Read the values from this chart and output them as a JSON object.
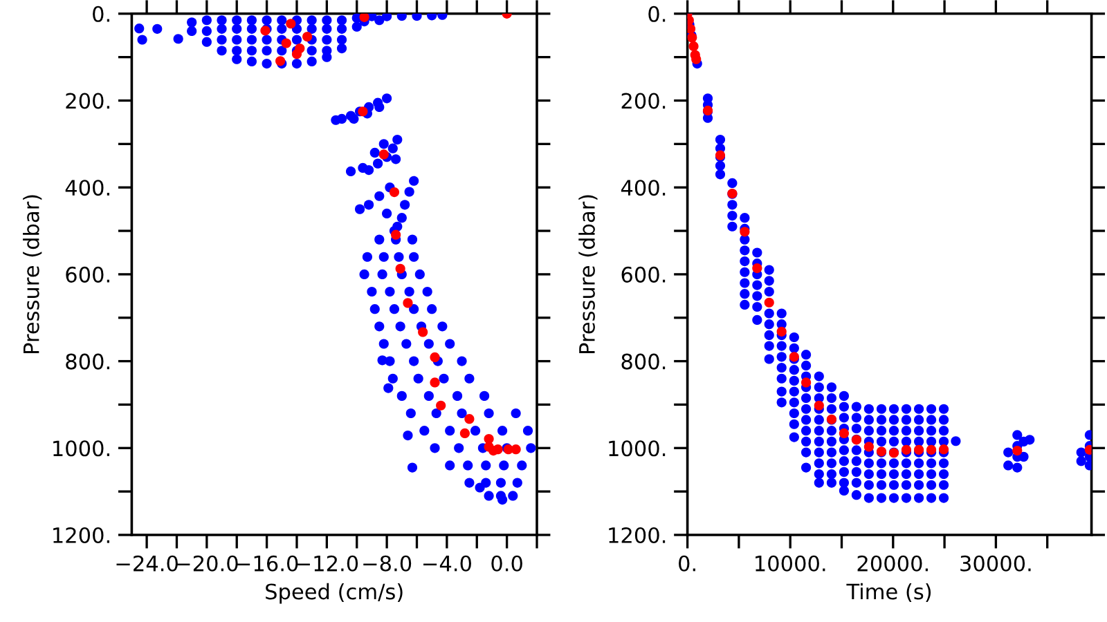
{
  "chart_data": [
    {
      "type": "scatter",
      "xlabel": "Speed (cm/s)",
      "ylabel": "Pressure (dbar)",
      "marker": "circle",
      "xlim": [
        -25,
        2
      ],
      "xticks": [
        {
          "value": -24,
          "label": "−24.0"
        },
        {
          "value": -22,
          "label": null
        },
        {
          "value": -20,
          "label": "−20.0"
        },
        {
          "value": -18,
          "label": null
        },
        {
          "value": -16,
          "label": "−16.0"
        },
        {
          "value": -14,
          "label": null
        },
        {
          "value": -12,
          "label": "−12.0"
        },
        {
          "value": -10,
          "label": null
        },
        {
          "value": -8,
          "label": "−8.0"
        },
        {
          "value": -6,
          "label": null
        },
        {
          "value": -4,
          "label": "−4.0"
        },
        {
          "value": -2,
          "label": null
        },
        {
          "value": 0,
          "label": "0.0"
        },
        {
          "value": 2,
          "label": null
        }
      ],
      "ylim": [
        1200,
        0
      ],
      "yticks": [
        {
          "value": 0,
          "label": "0."
        },
        {
          "value": 100,
          "label": null
        },
        {
          "value": 200,
          "label": "200."
        },
        {
          "value": 300,
          "label": null
        },
        {
          "value": 400,
          "label": "400."
        },
        {
          "value": 500,
          "label": null
        },
        {
          "value": 600,
          "label": "600."
        },
        {
          "value": 700,
          "label": null
        },
        {
          "value": 800,
          "label": "800."
        },
        {
          "value": 900,
          "label": null
        },
        {
          "value": 1000,
          "label": "1000."
        },
        {
          "value": 1100,
          "label": null
        },
        {
          "value": 1200,
          "label": "1200."
        }
      ],
      "series": [
        {
          "color": "#0000ff",
          "x": [
            -24.5,
            -24.3,
            -23.3,
            -21.9,
            -21,
            -21,
            -20,
            -20,
            -20,
            -19,
            -19,
            -19,
            -19,
            -18,
            -18,
            -18,
            -18,
            -18,
            -17,
            -17,
            -17,
            -17,
            -17,
            -16,
            -16,
            -16,
            -16,
            -16,
            -15,
            -15,
            -15,
            -15,
            -15,
            -14,
            -14,
            -14,
            -14,
            -14,
            -13,
            -13,
            -13,
            -13,
            -13,
            -12,
            -12,
            -12,
            -12,
            -12,
            -11,
            -11,
            -11,
            -11,
            -10,
            -10,
            -9,
            -8,
            -7,
            -6,
            -5,
            -4.3,
            -8.5,
            -9.5,
            -8.0,
            -8.6,
            -9.2,
            -9.8,
            -10.4,
            -11.0,
            -11.4,
            -8.5,
            -9.3,
            -10.2,
            -7.3,
            -7.6,
            -8.0,
            -8.6,
            -9.2,
            -8.2,
            -8.8,
            -9.6,
            -7.4,
            -10.4,
            -6.2,
            -6.5,
            -6.8,
            -7.0,
            -7.3,
            -7.8,
            -8.5,
            -9.2,
            -9.8,
            -8.0,
            -7.5,
            -8.5,
            -7.4,
            -6.3,
            -9.3,
            -8.2,
            -7.2,
            -6.2,
            -9.5,
            -8.3,
            -7.0,
            -5.8,
            -9.0,
            -7.8,
            -6.5,
            -5.3,
            -8.8,
            -7.5,
            -6.2,
            -5.0,
            -8.5,
            -7.1,
            -5.7,
            -4.3,
            -8.2,
            -6.7,
            -5.2,
            -3.8,
            -7.8,
            -6.2,
            -4.6,
            -3.0,
            -7.6,
            -5.9,
            -4.2,
            -2.5,
            -7.0,
            -5.2,
            -3.3,
            -1.5,
            -6.4,
            -4.7,
            -3.0,
            -1.2,
            0.6,
            -5.5,
            -3.8,
            -2.1,
            -0.3,
            1.4,
            -4.8,
            -3.2,
            -1.6,
            0,
            1.6,
            -3.8,
            -2.6,
            -1.4,
            -0.2,
            1.0,
            -2.5,
            -1.4,
            -0.4,
            0.7,
            -1.2,
            -0.4,
            0.4,
            -8.3,
            -7.9,
            -6.6,
            -6.3,
            -1.8,
            -0.3
          ],
          "values": [
            34,
            60,
            35,
            58,
            20,
            40,
            15,
            40,
            65,
            15,
            35,
            60,
            85,
            15,
            35,
            60,
            85,
            105,
            15,
            35,
            60,
            85,
            110,
            15,
            35,
            60,
            85,
            115,
            15,
            35,
            60,
            85,
            115,
            15,
            35,
            60,
            85,
            115,
            15,
            35,
            60,
            85,
            110,
            15,
            35,
            60,
            85,
            100,
            15,
            35,
            60,
            80,
            10,
            30,
            6,
            6,
            5,
            5,
            4,
            3,
            15,
            18,
            195,
            205,
            215,
            225,
            235,
            242,
            245,
            215,
            230,
            242,
            290,
            310,
            330,
            345,
            360,
            300,
            320,
            355,
            335,
            363,
            385,
            410,
            440,
            470,
            490,
            400,
            420,
            440,
            450,
            460,
            500,
            520,
            520,
            520,
            560,
            560,
            560,
            560,
            600,
            600,
            600,
            600,
            640,
            640,
            640,
            640,
            680,
            680,
            680,
            680,
            720,
            720,
            720,
            720,
            760,
            760,
            760,
            760,
            800,
            800,
            800,
            800,
            840,
            840,
            840,
            840,
            880,
            880,
            880,
            880,
            920,
            920,
            920,
            920,
            920,
            960,
            960,
            960,
            960,
            960,
            1000,
            1000,
            1000,
            1000,
            1000,
            1040,
            1040,
            1040,
            1040,
            1040,
            1080,
            1080,
            1080,
            1080,
            1110,
            1110,
            1110,
            798,
            862,
            971,
            1045,
            1091,
            1119
          ]
        },
        {
          "color": "#ff0000",
          "x": [
            -16.1,
            -14.4,
            -13.3,
            -14.7,
            -13.8,
            -14.0,
            -15.1,
            -9.5,
            0,
            -9.6,
            -8.2,
            -7.5,
            -7.4,
            -7.1,
            -6.6,
            -5.6,
            -4.8,
            -4.8,
            -4.4,
            -2.5,
            -2.8,
            -1.2,
            -1.2,
            -0.9,
            0.1,
            0.6,
            -0.6
          ],
          "values": [
            39,
            23,
            53,
            68,
            80,
            93,
            109,
            8,
            0,
            225,
            324,
            411,
            509,
            587,
            666,
            733,
            791,
            849,
            902,
            933,
            966,
            979,
            997,
            1006,
            1003,
            1003,
            1003
          ]
        }
      ]
    },
    {
      "type": "scatter",
      "xlabel": "Time (s)",
      "ylabel": "Pressure (dbar)",
      "marker": "circle",
      "xlim": [
        0,
        39300
      ],
      "xticks": [
        {
          "value": 0,
          "label": "0."
        },
        {
          "value": 5000,
          "label": null
        },
        {
          "value": 10000,
          "label": "10000."
        },
        {
          "value": 15000,
          "label": null
        },
        {
          "value": 20000,
          "label": "20000."
        },
        {
          "value": 25000,
          "label": null
        },
        {
          "value": 30000,
          "label": "30000."
        },
        {
          "value": 35000,
          "label": null
        }
      ],
      "ylim": [
        1200,
        0
      ],
      "yticks": [
        {
          "value": 0,
          "label": "0."
        },
        {
          "value": 100,
          "label": null
        },
        {
          "value": 200,
          "label": "200."
        },
        {
          "value": 300,
          "label": null
        },
        {
          "value": 400,
          "label": "400."
        },
        {
          "value": 500,
          "label": null
        },
        {
          "value": 600,
          "label": "600."
        },
        {
          "value": 700,
          "label": null
        },
        {
          "value": 800,
          "label": "800."
        },
        {
          "value": 900,
          "label": null
        },
        {
          "value": 1000,
          "label": "1000."
        },
        {
          "value": 1100,
          "label": null
        },
        {
          "value": 1200,
          "label": "1200."
        }
      ],
      "series": [
        {
          "color": "#0000ff",
          "x": [
            0,
            200,
            400,
            950,
            1980,
            1980,
            1980,
            1980,
            3190,
            3190,
            3190,
            3190,
            3190,
            4360,
            4360,
            4360,
            4360,
            4360,
            5570,
            5570,
            5570,
            5570,
            5570,
            5570,
            5570,
            5570,
            5570,
            6780,
            6780,
            6780,
            6780,
            6780,
            6780,
            6780,
            7950,
            7950,
            7950,
            7950,
            7950,
            7950,
            7950,
            7950,
            9160,
            9160,
            9160,
            9160,
            9160,
            9160,
            9160,
            9160,
            9160,
            10380,
            10380,
            10380,
            10380,
            10380,
            10380,
            10380,
            10380,
            10380,
            10380,
            11540,
            11540,
            11540,
            11540,
            11540,
            11540,
            11540,
            11540,
            11540,
            11540,
            11540,
            12800,
            12800,
            12800,
            12800,
            12800,
            12800,
            12800,
            12800,
            12800,
            12800,
            12800,
            14020,
            14020,
            14020,
            14020,
            14020,
            14020,
            14020,
            14020,
            14020,
            14020,
            15230,
            15230,
            15230,
            15230,
            15230,
            15230,
            15230,
            15230,
            15230,
            15230,
            16440,
            16440,
            16440,
            16440,
            16440,
            16440,
            16440,
            16440,
            16440,
            17650,
            17650,
            17650,
            17650,
            17650,
            17650,
            17650,
            17650,
            17650,
            18870,
            18870,
            18870,
            18870,
            18870,
            18870,
            18870,
            18870,
            18870,
            20080,
            20080,
            20080,
            20080,
            20080,
            20080,
            20080,
            20080,
            20080,
            21290,
            21290,
            21290,
            21290,
            21290,
            21290,
            21290,
            21290,
            21290,
            22510,
            22510,
            22510,
            22510,
            22510,
            22510,
            22510,
            22510,
            22510,
            23720,
            23720,
            23720,
            23720,
            23720,
            23720,
            23720,
            23720,
            23720,
            24930,
            24930,
            24930,
            24930,
            24930,
            24930,
            24930,
            24930,
            24930,
            26100,
            33290,
            31200,
            31200,
            32080,
            32080,
            32080,
            32080,
            32700,
            32700,
            38300,
            38300,
            39120,
            39120,
            39120,
            39120
          ],
          "values": [
            0,
            25,
            50,
            115,
            195,
            210,
            225,
            240,
            290,
            310,
            330,
            350,
            370,
            390,
            415,
            440,
            465,
            490,
            470,
            495,
            520,
            545,
            570,
            595,
            620,
            645,
            670,
            550,
            575,
            600,
            625,
            650,
            675,
            705,
            590,
            615,
            640,
            690,
            715,
            740,
            765,
            795,
            690,
            715,
            740,
            765,
            790,
            815,
            840,
            870,
            895,
            745,
            770,
            795,
            820,
            845,
            870,
            895,
            920,
            945,
            975,
            785,
            810,
            835,
            860,
            885,
            910,
            935,
            960,
            985,
            1010,
            1045,
            835,
            860,
            885,
            910,
            935,
            960,
            985,
            1010,
            1035,
            1060,
            1080,
            860,
            885,
            910,
            935,
            960,
            985,
            1010,
            1035,
            1060,
            1080,
            880,
            905,
            930,
            955,
            980,
            1005,
            1030,
            1055,
            1080,
            1098,
            905,
            930,
            955,
            980,
            1005,
            1030,
            1055,
            1080,
            1108,
            910,
            935,
            960,
            985,
            1010,
            1035,
            1060,
            1085,
            1115,
            910,
            935,
            960,
            985,
            1010,
            1035,
            1060,
            1085,
            1115,
            910,
            935,
            960,
            985,
            1010,
            1035,
            1060,
            1085,
            1115,
            910,
            935,
            960,
            985,
            1010,
            1035,
            1060,
            1085,
            1115,
            910,
            935,
            960,
            985,
            1010,
            1035,
            1060,
            1085,
            1115,
            910,
            935,
            960,
            985,
            1010,
            1035,
            1060,
            1085,
            1115,
            910,
            935,
            960,
            985,
            1010,
            1035,
            1060,
            1085,
            1115,
            984,
            981,
            1010,
            1040,
            970,
            995,
            1020,
            1045,
            985,
            1020,
            1010,
            1030,
            970,
            995,
            1020,
            1040
          ]
        },
        {
          "color": "#ff0000",
          "x": [
            0,
            150,
            300,
            450,
            600,
            750,
            850,
            1980,
            3190,
            4360,
            5570,
            6780,
            7950,
            9160,
            10380,
            11540,
            12800,
            14020,
            15230,
            16440,
            17650,
            18870,
            20080,
            21290,
            22510,
            23720,
            24930,
            32080,
            39120
          ],
          "values": [
            0,
            15,
            35,
            55,
            75,
            95,
            105,
            223,
            326,
            414,
            502,
            586,
            665,
            732,
            790,
            849,
            902,
            934,
            966,
            981,
            997,
            1008,
            1011,
            1004,
            1004,
            1004,
            1003,
            1006,
            1004
          ]
        }
      ]
    }
  ]
}
